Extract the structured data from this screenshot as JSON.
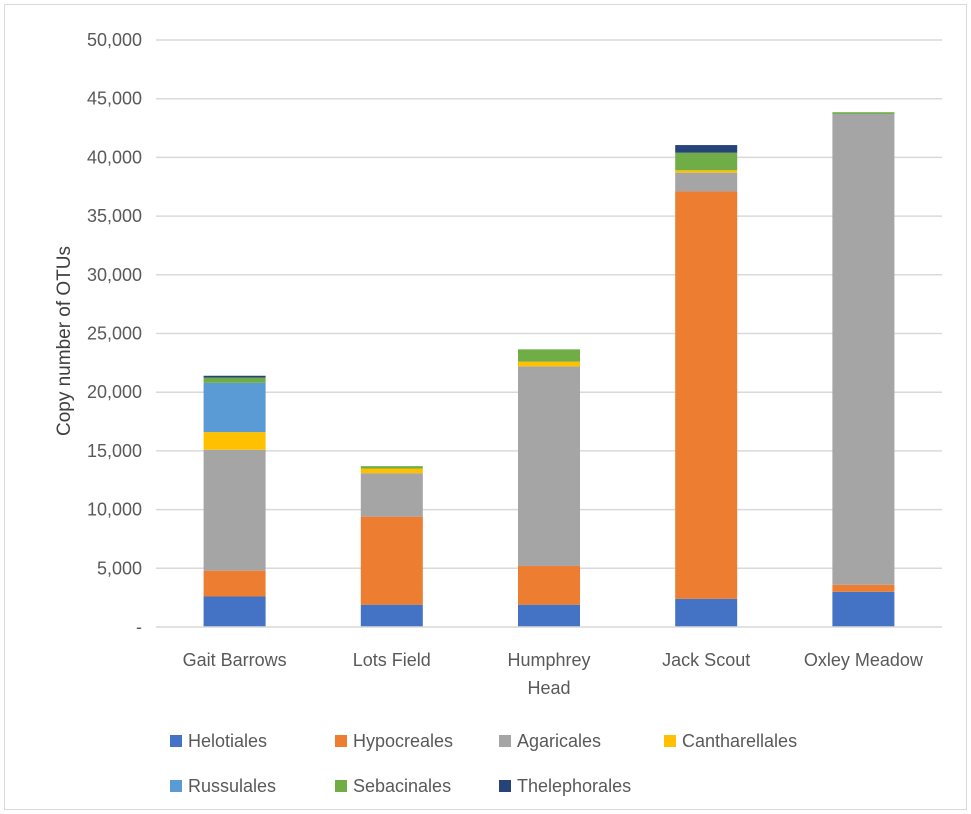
{
  "chart_data": {
    "type": "bar",
    "stacked": true,
    "title": "",
    "xlabel": "",
    "ylabel": "Copy number of OTUs",
    "ylim": [
      0,
      50000
    ],
    "yticks": [
      0,
      5000,
      10000,
      15000,
      20000,
      25000,
      30000,
      35000,
      40000,
      45000,
      50000
    ],
    "ytick_labels": [
      "-",
      "5,000",
      "10,000",
      "15,000",
      "20,000",
      "25,000",
      "30,000",
      "35,000",
      "40,000",
      "45,000",
      "50,000"
    ],
    "grid": true,
    "legend_position": "bottom",
    "categories": [
      [
        "Gait Barrows"
      ],
      [
        "Lots Field"
      ],
      [
        "Humphrey",
        "Head"
      ],
      [
        "Jack Scout"
      ],
      [
        "Oxley Meadow"
      ]
    ],
    "series": [
      {
        "name": "Helotiales",
        "color": "#4472C4",
        "values": [
          2600,
          1900,
          1900,
          2400,
          3000
        ]
      },
      {
        "name": "Hypocreales",
        "color": "#ED7D31",
        "values": [
          2200,
          7500,
          3300,
          34700,
          600
        ]
      },
      {
        "name": "Agaricales",
        "color": "#A5A5A5",
        "values": [
          10300,
          3700,
          17000,
          1600,
          40100
        ]
      },
      {
        "name": "Cantharellales",
        "color": "#FFC000",
        "values": [
          1500,
          400,
          400,
          200,
          0
        ]
      },
      {
        "name": "Russulales",
        "color": "#5B9BD5",
        "values": [
          4200,
          0,
          0,
          0,
          0
        ]
      },
      {
        "name": "Sebacinales",
        "color": "#70AD47",
        "values": [
          450,
          200,
          1050,
          1500,
          150
        ]
      },
      {
        "name": "Thelephorales",
        "color": "#264478",
        "values": [
          150,
          0,
          0,
          650,
          0
        ]
      }
    ],
    "gridline_color": "#d9d9d9",
    "axis_color": "#d9d9d9"
  }
}
